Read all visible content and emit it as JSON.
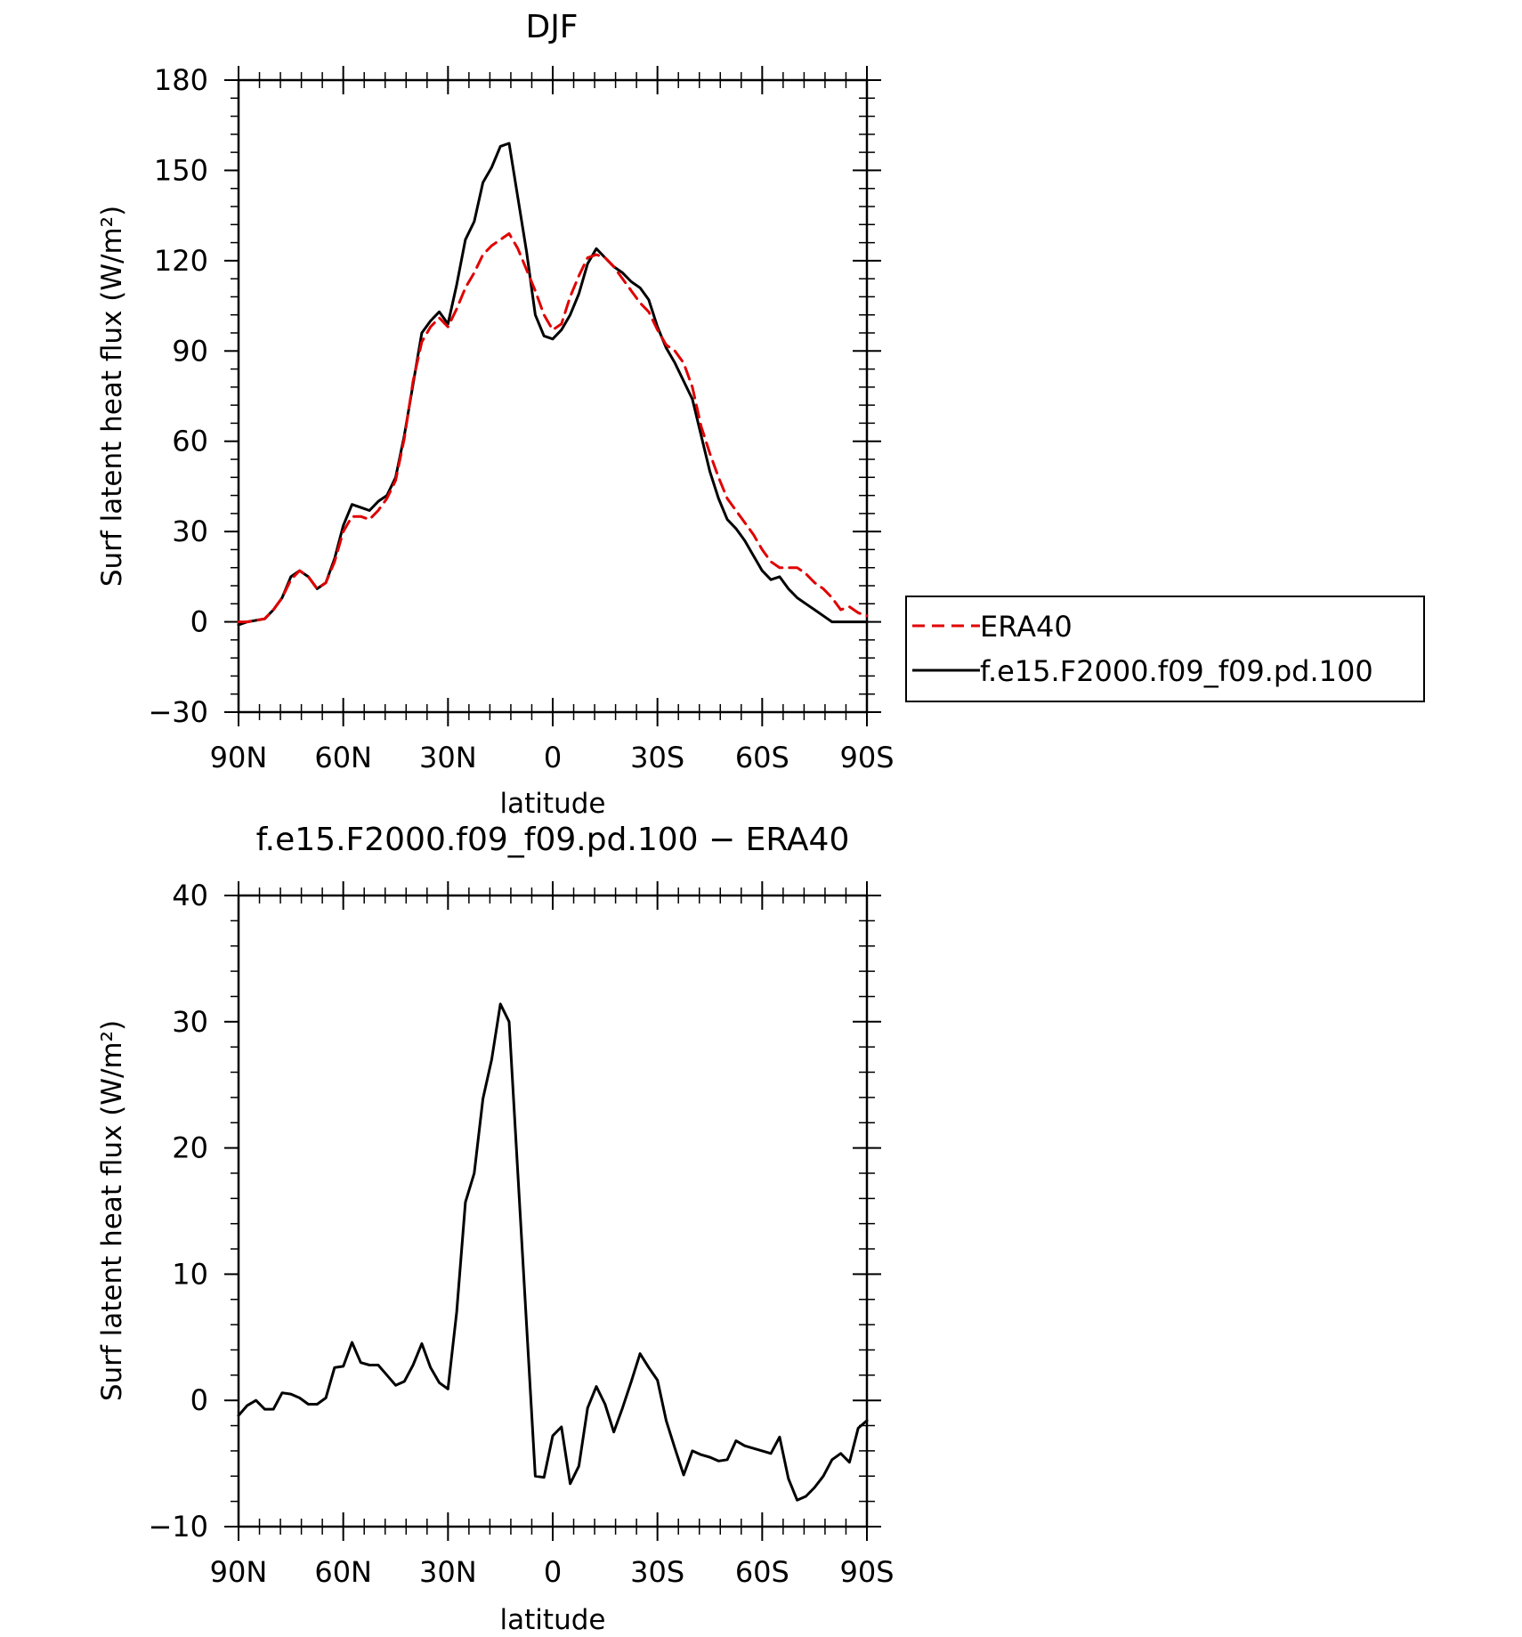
{
  "chart_data": [
    {
      "type": "line",
      "title": "DJF",
      "xlabel": "latitude",
      "ylabel": "Surf latent heat flux (W/m²)",
      "xlim": [
        90,
        -90
      ],
      "ylim": [
        -30,
        180
      ],
      "xticks": [
        90,
        60,
        30,
        0,
        -30,
        -60,
        -90
      ],
      "xtick_labels": [
        "90N",
        "60N",
        "30N",
        "0",
        "30S",
        "60S",
        "90S"
      ],
      "yticks": [
        -30,
        0,
        30,
        60,
        90,
        120,
        150,
        180
      ],
      "ytick_labels": [
        "−30",
        "0",
        "30",
        "60",
        "90",
        "120",
        "150",
        "180"
      ],
      "grid": false,
      "legend_position": "right, outside plot",
      "x": [
        90,
        87.5,
        82.5,
        80,
        77.5,
        75,
        72.5,
        70,
        67.5,
        65,
        62.5,
        60,
        57.5,
        55,
        52.5,
        50,
        47.5,
        45,
        42.5,
        40,
        37.5,
        35,
        32.5,
        30,
        27.5,
        25,
        22.5,
        20,
        17.5,
        15,
        12.5,
        10,
        7.5,
        5,
        2.5,
        0,
        -2.5,
        -5,
        -7.5,
        -10,
        -12.5,
        -15,
        -17.5,
        -20,
        -22.5,
        -25,
        -27.5,
        -30,
        -32.5,
        -35,
        -37.5,
        -40,
        -42.5,
        -45,
        -47.5,
        -50,
        -52.5,
        -55,
        -57.5,
        -60,
        -62.5,
        -65,
        -67.5,
        -70,
        -72.5,
        -75,
        -77.5,
        -80,
        -82.5,
        -85,
        -87.5,
        -90
      ],
      "series": [
        {
          "name": "ERA40",
          "color": "#e00000",
          "style": "dashed",
          "values": [
            0,
            0,
            1,
            4,
            8,
            14,
            17,
            15,
            11,
            13,
            20,
            30,
            35,
            35,
            34,
            37,
            41,
            47,
            61,
            80,
            93,
            98,
            101,
            98,
            104,
            111,
            116,
            122,
            125,
            127,
            129,
            124,
            117,
            110,
            102,
            97,
            99,
            108,
            115,
            121,
            122,
            121,
            118,
            114,
            110,
            106,
            103,
            97,
            92,
            90,
            86,
            78,
            65,
            56,
            48,
            41,
            37,
            33,
            29,
            24,
            20,
            18,
            18,
            18,
            16,
            13,
            11,
            8,
            4,
            5,
            3,
            2
          ]
        },
        {
          "name": "f.e15.F2000.f09_f09.pd.100",
          "color": "#000000",
          "style": "solid",
          "values": [
            -1,
            0,
            1,
            4,
            8,
            15,
            17,
            15,
            11,
            13,
            21,
            32,
            39,
            38,
            37,
            40,
            42,
            48,
            62,
            79,
            96,
            100,
            103,
            99,
            112,
            127,
            133,
            146,
            151,
            158,
            159,
            141,
            123,
            102,
            95,
            94,
            97,
            102,
            109,
            119,
            124,
            121,
            118,
            116,
            113,
            111,
            107,
            98,
            91,
            86,
            80,
            74,
            62,
            50,
            41,
            34,
            31,
            27,
            22,
            17,
            14,
            15,
            11,
            8,
            6,
            4,
            2,
            0,
            0,
            0,
            0,
            0
          ]
        }
      ]
    },
    {
      "type": "line",
      "title": "f.e15.F2000.f09_f09.pd.100 − ERA40",
      "xlabel": "latitude",
      "ylabel": "Surf latent heat flux (W/m²)",
      "xlim": [
        90,
        -90
      ],
      "ylim": [
        -10,
        40
      ],
      "xticks": [
        90,
        60,
        30,
        0,
        -30,
        -60,
        -90
      ],
      "xtick_labels": [
        "90N",
        "60N",
        "30N",
        "0",
        "30S",
        "60S",
        "90S"
      ],
      "yticks": [
        -10,
        0,
        10,
        20,
        30,
        40
      ],
      "ytick_labels": [
        "−10",
        "0",
        "10",
        "20",
        "30",
        "40"
      ],
      "grid": false,
      "x": [
        90,
        87.5,
        85,
        82.5,
        80,
        77.5,
        75,
        72.5,
        70,
        67.5,
        65,
        62.5,
        60,
        57.5,
        55,
        52.5,
        50,
        47.5,
        45,
        42.5,
        40,
        37.5,
        35,
        32.5,
        30,
        27.5,
        25,
        22.5,
        20,
        17.5,
        15,
        12.5,
        10,
        7.5,
        5,
        2.5,
        0,
        -2.5,
        -5,
        -7.5,
        -10,
        -12.5,
        -15,
        -17.5,
        -20,
        -22.5,
        -25,
        -27.5,
        -30,
        -32.5,
        -35,
        -37.5,
        -40,
        -42.5,
        -45,
        -47.5,
        -50,
        -52.5,
        -55,
        -57.5,
        -60,
        -62.5,
        -65,
        -67.5,
        -70,
        -72.5,
        -75,
        -77.5,
        -80,
        -82.5,
        -85,
        -87.5,
        -90
      ],
      "series": [
        {
          "color": "#000000",
          "style": "solid",
          "values": [
            -1.2,
            -0.4,
            0,
            -0.7,
            -0.7,
            0.6,
            0.5,
            0.2,
            -0.3,
            -0.3,
            0.2,
            2.6,
            2.7,
            4.6,
            3.0,
            2.8,
            2.8,
            2.0,
            1.2,
            1.5,
            2.8,
            4.5,
            2.6,
            1.4,
            0.9,
            7.0,
            15.7,
            18.0,
            23.9,
            27.0,
            31.4,
            30.0,
            18.0,
            6.0,
            -6.0,
            -6.1,
            -2.8,
            -2.1,
            -6.6,
            -5.2,
            -0.6,
            1.1,
            -0.3,
            -2.5,
            -0.6,
            1.5,
            3.7,
            2.6,
            1.6,
            -1.6,
            -3.8,
            -5.9,
            -4.0,
            -4.3,
            -4.5,
            -4.8,
            -4.7,
            -3.2,
            -3.6,
            -3.8,
            -4.0,
            -4.2,
            -2.9,
            -6.2,
            -7.9,
            -7.6,
            -6.9,
            -6.0,
            -4.7,
            -4.2,
            -4.9,
            -2.2,
            -1.6
          ]
        }
      ]
    }
  ]
}
